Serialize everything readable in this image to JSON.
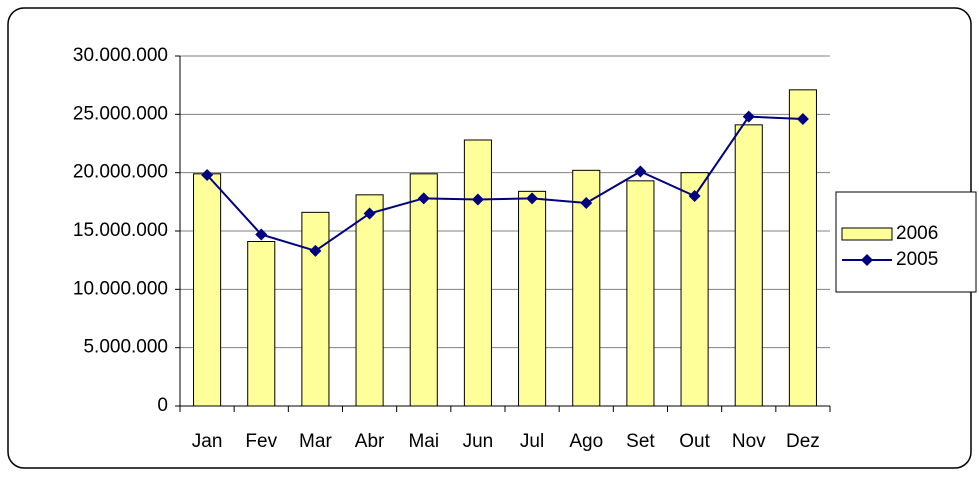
{
  "chart_data": {
    "type": "bar",
    "categories": [
      "Jan",
      "Fev",
      "Mar",
      "Abr",
      "Mai",
      "Jun",
      "Jul",
      "Ago",
      "Set",
      "Out",
      "Nov",
      "Dez"
    ],
    "series": [
      {
        "name": "2006",
        "type": "bar",
        "color": "#ffff99",
        "values": [
          19900000,
          14100000,
          16600000,
          18100000,
          19900000,
          22800000,
          18400000,
          20200000,
          19300000,
          20000000,
          24100000,
          27100000
        ]
      },
      {
        "name": "2005",
        "type": "line",
        "color": "#000080",
        "values": [
          19800000,
          14700000,
          13300000,
          16500000,
          17800000,
          17700000,
          17800000,
          17400000,
          20100000,
          18000000,
          24800000,
          24600000
        ]
      }
    ],
    "ylim": [
      0,
      30000000
    ],
    "yticks": [
      0,
      {
        "value": 5000000,
        "label": "5.000.000"
      },
      {
        "value": 10000000,
        "label": "10.000.000"
      },
      {
        "value": 15000000,
        "label": "15.000.000"
      },
      {
        "value": 20000000,
        "label": "20.000.000"
      },
      {
        "value": 25000000,
        "label": "25.000.000"
      },
      {
        "value": 30000000,
        "label": "30.000.000"
      }
    ],
    "grid": true,
    "legend": "right"
  }
}
